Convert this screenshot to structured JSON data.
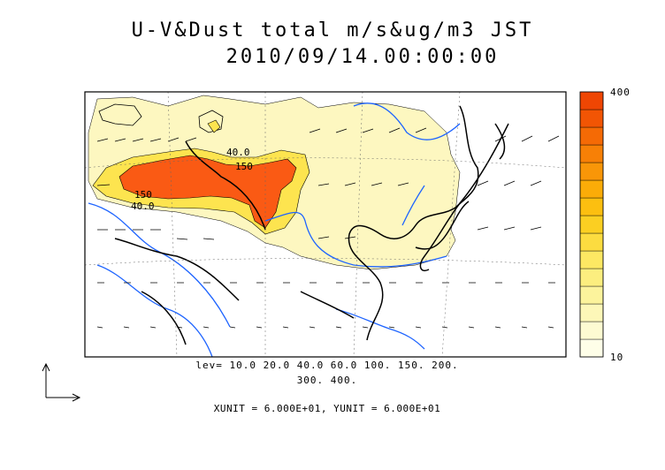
{
  "title": {
    "line1": "U-V&Dust total m/s&ug/m3 JST",
    "line2": "2010/09/14.00:00:00"
  },
  "levels": {
    "line1": "lev= 10.0 20.0 40.0 60.0 100. 150. 200.",
    "line2": "300. 400."
  },
  "units_text": "XUNIT = 6.000E+01, YUNIT = 6.000E+01",
  "colorbar": {
    "max_label": "400",
    "min_label": "10",
    "colors": [
      "#fefee8",
      "#fdfbd2",
      "#fdf7b8",
      "#fcf39c",
      "#fcee7f",
      "#fde863",
      "#fcdc40",
      "#fbcf22",
      "#fcbf10",
      "#fbac08",
      "#f99608",
      "#f78006",
      "#f56a05",
      "#f25504",
      "#ef4603"
    ]
  },
  "contour_labels": [
    "40.0",
    "150",
    "150",
    "40.0"
  ],
  "colors": {
    "dust_low": "#fdf7c0",
    "dust_mid": "#fde44f",
    "dust_high": "#fa5a14",
    "rivers": "#1e64ff",
    "coast": "#000000"
  }
}
